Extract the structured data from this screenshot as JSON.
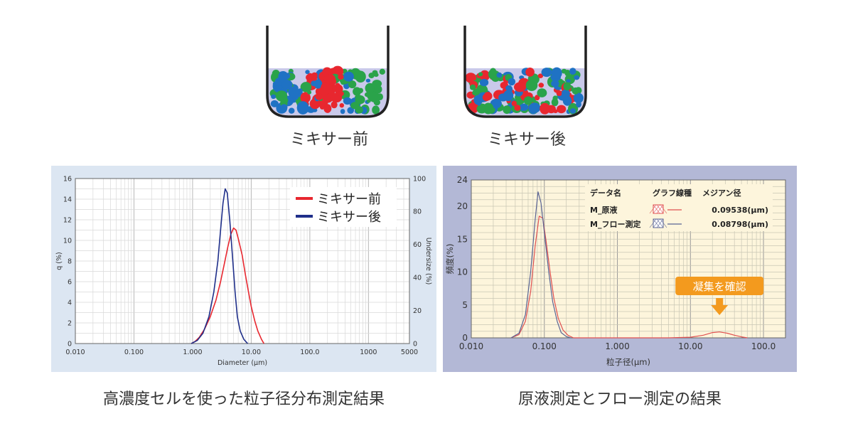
{
  "beakers": [
    {
      "caption": "ミキサー前",
      "state": "clustered"
    },
    {
      "caption": "ミキサー後",
      "state": "dispersed"
    }
  ],
  "panels": [
    {
      "caption": "高濃度セルを使った粒子径分布測定結果"
    },
    {
      "caption": "原液測定とフロー測定の結果"
    }
  ],
  "chart_data": [
    {
      "type": "line",
      "title": "",
      "xlabel": "Diameter (µm)",
      "ylabel": "q (%)",
      "ylabel_right": "Undersize (%)",
      "xscale": "log",
      "xlim": [
        0.01,
        5000
      ],
      "ylim": [
        0,
        16
      ],
      "ylim_right": [
        0,
        100
      ],
      "xticks": [
        "0.010",
        "0.100",
        "1.000",
        "10.00",
        "100.0",
        "1000",
        "5000"
      ],
      "yticks": [
        "0",
        "2",
        "4",
        "6",
        "8",
        "10",
        "12",
        "14",
        "16"
      ],
      "yticks_right": [
        "0",
        "20",
        "40",
        "60",
        "80",
        "100"
      ],
      "grid": true,
      "legend_position": "top-right",
      "background": "#ffffff",
      "frame_background": "#dce6f2",
      "series": [
        {
          "name": "ミキサー前",
          "color": "#e8272f",
          "points": [
            [
              0.95,
              0
            ],
            [
              1.1,
              0.2
            ],
            [
              1.3,
              0.6
            ],
            [
              1.6,
              1.4
            ],
            [
              2.0,
              2.6
            ],
            [
              2.5,
              4.2
            ],
            [
              3.0,
              6.0
            ],
            [
              3.5,
              7.8
            ],
            [
              4.0,
              9.4
            ],
            [
              4.5,
              10.6
            ],
            [
              5.0,
              11.2
            ],
            [
              5.5,
              11.0
            ],
            [
              6.0,
              10.2
            ],
            [
              7.0,
              8.6
            ],
            [
              8.0,
              6.6
            ],
            [
              9.0,
              5.0
            ],
            [
              10.0,
              3.6
            ],
            [
              11.5,
              2.2
            ],
            [
              13.0,
              1.2
            ],
            [
              15.0,
              0.4
            ],
            [
              16.5,
              0
            ]
          ]
        },
        {
          "name": "ミキサー後",
          "color": "#1f2f8a",
          "points": [
            [
              0.95,
              0
            ],
            [
              1.2,
              0.3
            ],
            [
              1.5,
              1.0
            ],
            [
              1.9,
              2.6
            ],
            [
              2.3,
              5.0
            ],
            [
              2.7,
              8.0
            ],
            [
              3.0,
              11.0
            ],
            [
              3.3,
              13.6
            ],
            [
              3.6,
              15.0
            ],
            [
              3.9,
              14.6
            ],
            [
              4.3,
              12.0
            ],
            [
              4.8,
              8.4
            ],
            [
              5.3,
              5.0
            ],
            [
              5.8,
              2.6
            ],
            [
              6.5,
              1.2
            ],
            [
              7.5,
              0.4
            ],
            [
              8.7,
              0
            ]
          ]
        }
      ]
    },
    {
      "type": "line",
      "title": "",
      "xlabel": "粒子径(µm)",
      "ylabel": "頻度(%)",
      "xscale": "log",
      "xlim": [
        0.01,
        200
      ],
      "ylim": [
        0,
        24
      ],
      "xticks": [
        "0.010",
        "0.100",
        "1.000",
        "10.00",
        "100.0"
      ],
      "yticks": [
        "0",
        "5",
        "10",
        "15",
        "20",
        "24"
      ],
      "grid": true,
      "legend_position": "top-right",
      "background": "#fdf5dc",
      "frame_background": "#b3b8d6",
      "legend_headers": [
        "データ名",
        "グラフ線種",
        "メジアン径"
      ],
      "annotation": {
        "text": "凝集を確認",
        "x": 25,
        "color": "#f39a1e"
      },
      "series": [
        {
          "name": "M_原液",
          "median": "0.09538(µm)",
          "color": "#e05050",
          "points": [
            [
              0.035,
              0
            ],
            [
              0.045,
              0.5
            ],
            [
              0.055,
              2.5
            ],
            [
              0.065,
              7
            ],
            [
              0.075,
              14
            ],
            [
              0.085,
              18.5
            ],
            [
              0.095,
              18.2
            ],
            [
              0.105,
              15
            ],
            [
              0.12,
              10
            ],
            [
              0.135,
              6
            ],
            [
              0.155,
              3
            ],
            [
              0.18,
              1.2
            ],
            [
              0.21,
              0.4
            ],
            [
              0.25,
              0
            ],
            [
              5,
              0
            ],
            [
              10,
              0.1
            ],
            [
              15,
              0.4
            ],
            [
              20,
              0.8
            ],
            [
              25,
              0.9
            ],
            [
              32,
              0.7
            ],
            [
              40,
              0.4
            ],
            [
              50,
              0.15
            ],
            [
              60,
              0
            ]
          ]
        },
        {
          "name": "M_フロー測定",
          "median": "0.08798(µm)",
          "color": "#5a6494",
          "points": [
            [
              0.035,
              0
            ],
            [
              0.045,
              0.7
            ],
            [
              0.055,
              3.5
            ],
            [
              0.065,
              10
            ],
            [
              0.075,
              18
            ],
            [
              0.082,
              22.2
            ],
            [
              0.09,
              20.5
            ],
            [
              0.1,
              16
            ],
            [
              0.115,
              10
            ],
            [
              0.13,
              5.5
            ],
            [
              0.15,
              2.5
            ],
            [
              0.17,
              0.8
            ],
            [
              0.2,
              0.2
            ],
            [
              0.23,
              0
            ]
          ]
        }
      ]
    }
  ]
}
